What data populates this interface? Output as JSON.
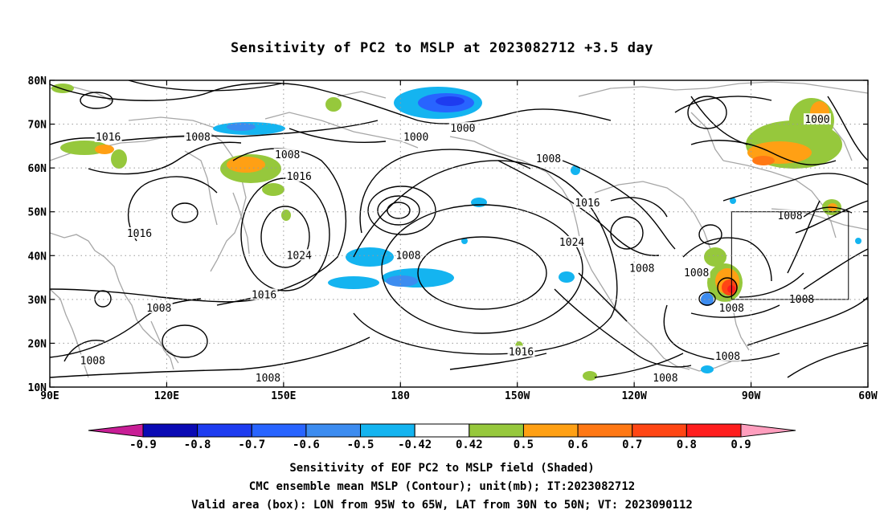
{
  "title": "Sensitivity of PC2 to MSLP at 2023082712 +3.5 day",
  "map": {
    "lat_ticks": [
      "80N",
      "70N",
      "60N",
      "50N",
      "40N",
      "30N",
      "20N",
      "10N"
    ],
    "lon_ticks": [
      "90E",
      "120E",
      "150E",
      "180",
      "150W",
      "120W",
      "90W",
      "60W"
    ],
    "contour_labels": [
      {
        "text": "1016",
        "lon": 105,
        "lat": 67
      },
      {
        "text": "1008",
        "lon": 128,
        "lat": 67
      },
      {
        "text": "1000",
        "lon": 184,
        "lat": 67
      },
      {
        "text": "1000",
        "lon": 196,
        "lat": 69
      },
      {
        "text": "1008",
        "lon": 151,
        "lat": 63
      },
      {
        "text": "1016",
        "lon": 154,
        "lat": 58
      },
      {
        "text": "1008",
        "lon": 218,
        "lat": 62
      },
      {
        "text": "1016",
        "lon": 228,
        "lat": 52
      },
      {
        "text": "1024",
        "lon": 224,
        "lat": 43
      },
      {
        "text": "1016",
        "lon": 113,
        "lat": 45
      },
      {
        "text": "1024",
        "lon": 154,
        "lat": 40
      },
      {
        "text": "1008",
        "lon": 182,
        "lat": 40
      },
      {
        "text": "1016",
        "lon": 145,
        "lat": 31
      },
      {
        "text": "1008",
        "lon": 118,
        "lat": 28
      },
      {
        "text": "1008",
        "lon": 101,
        "lat": 16
      },
      {
        "text": "1008",
        "lon": 146,
        "lat": 12
      },
      {
        "text": "1016",
        "lon": 211,
        "lat": 18
      },
      {
        "text": "1008",
        "lon": 242,
        "lat": 37
      },
      {
        "text": "1008",
        "lon": 256,
        "lat": 36
      },
      {
        "text": "1008",
        "lon": 265,
        "lat": 28
      },
      {
        "text": "1008",
        "lon": 283,
        "lat": 30
      },
      {
        "text": "1008",
        "lon": 280,
        "lat": 49
      },
      {
        "text": "1000",
        "lon": 287,
        "lat": 71
      },
      {
        "text": "1008",
        "lon": 264,
        "lat": 17
      },
      {
        "text": "1008",
        "lon": 248,
        "lat": 12
      }
    ],
    "valid_box": {
      "lon_min": 265,
      "lon_max": 295,
      "lat_min": 30,
      "lat_max": 50
    }
  },
  "colorbar": {
    "labels": [
      "-0.9",
      "-0.8",
      "-0.7",
      "-0.6",
      "-0.5",
      "-0.42",
      "0.42",
      "0.5",
      "0.6",
      "0.7",
      "0.8",
      "0.9"
    ],
    "colors": [
      "#0a0ab4",
      "#1e3cf0",
      "#2864ff",
      "#3c8cf0",
      "#14b4f0",
      "#ffffff",
      "#96c83c",
      "#ffa014",
      "#ff7814",
      "#ff4614",
      "#ff1e1e"
    ],
    "low_end_color": "#c81e96",
    "high_end_color": "#ff9ebe"
  },
  "captions": [
    "Sensitivity of EOF PC2 to MSLP field (Shaded)",
    "CMC ensemble mean MSLP (Contour); unit(mb); IT:2023082712",
    "Valid area (box): LON from 95W to 65W, LAT from 30N to 50N; VT: 2023090112"
  ]
}
